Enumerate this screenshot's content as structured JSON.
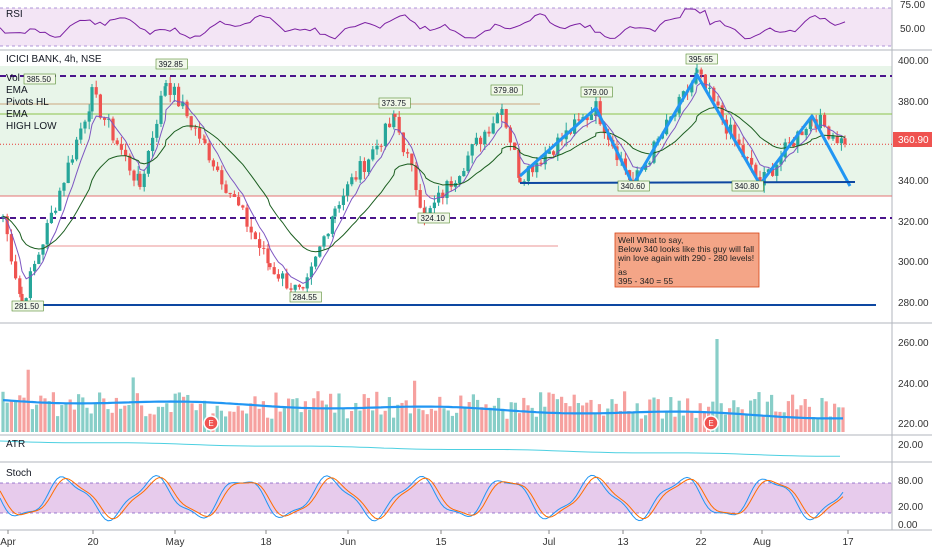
{
  "panels": {
    "rsi": {
      "title": "RSI",
      "ticks": [
        "75.00",
        "50.00"
      ]
    },
    "main": {
      "title": "ICICI BANK, 4h, NSE",
      "legend": [
        "Vol",
        "EMA",
        "Pivots HL",
        "EMA",
        "HIGH LOW"
      ],
      "ticks": [
        "400.00",
        "380.00",
        "360.00",
        "340.00",
        "320.00",
        "300.00",
        "280.00"
      ],
      "last_price": "360.90"
    },
    "volume": {
      "ticks": [
        "260.00",
        "240.00",
        "220.00"
      ],
      "event_marker": "E"
    },
    "atr": {
      "title": "ATR",
      "ticks": [
        "20.00"
      ]
    },
    "stoch": {
      "title": "Stoch",
      "ticks": [
        "80.00",
        "20.00",
        "0.00"
      ]
    }
  },
  "x_axis": {
    "labels": [
      "Apr",
      "20",
      "May",
      "18",
      "Jun",
      "15",
      "Jul",
      "13",
      "22",
      "Aug",
      "17"
    ]
  },
  "pivot_labels": [
    "385.50",
    "392.85",
    "281.50",
    "373.75",
    "379.80",
    "324.10",
    "284.55",
    "379.00",
    "395.65",
    "340.60",
    "340.80"
  ],
  "annotation": {
    "lines": [
      "Well What to say,",
      "Below 340 looks like this guy will fall",
      "win love again with 290 - 280 levels!",
      "!",
      "as",
      "395 - 340 = 55"
    ]
  },
  "chart_data": {
    "type": "candlestick",
    "title": "ICICI BANK, 4h, NSE",
    "timeframe": "4h",
    "last_price": 360.9,
    "ylim": [
      270,
      405
    ],
    "x_ticks": [
      "Apr",
      "20",
      "May",
      "18",
      "Jun",
      "15",
      "Jul",
      "13",
      "22",
      "Aug",
      "17"
    ],
    "price_path": [
      {
        "x": "Apr",
        "price": 325
      },
      {
        "x": "Apr",
        "price": 281.5
      },
      {
        "x": "20",
        "price": 385.5
      },
      {
        "x": "20",
        "price": 340
      },
      {
        "x": "May",
        "price": 392.85
      },
      {
        "x": "May",
        "price": 360
      },
      {
        "x": "18",
        "price": 300
      },
      {
        "x": "18",
        "price": 284.55
      },
      {
        "x": "Jun",
        "price": 330
      },
      {
        "x": "Jun",
        "price": 373.75
      },
      {
        "x": "15",
        "price": 324.1
      },
      {
        "x": "15",
        "price": 379.8
      },
      {
        "x": "Jul",
        "price": 345
      },
      {
        "x": "Jul",
        "price": 379.0
      },
      {
        "x": "13",
        "price": 340.6
      },
      {
        "x": "22",
        "price": 395.65
      },
      {
        "x": "Aug",
        "price": 340.8
      },
      {
        "x": "Aug",
        "price": 375
      },
      {
        "x": "17",
        "price": 360.9
      }
    ],
    "horizontal_levels": [
      {
        "price": 395,
        "style": "dashed",
        "color": "#4a148c"
      },
      {
        "price": 376,
        "style": "solid",
        "color": "#8bc34a"
      },
      {
        "price": 360.9,
        "style": "dotted",
        "color": "#e53935"
      },
      {
        "price": 335,
        "style": "solid",
        "color": "#e57373"
      },
      {
        "price": 324,
        "style": "dashed",
        "color": "#4a148c"
      },
      {
        "price": 280.5,
        "style": "solid",
        "color": "#0d47a1"
      }
    ],
    "zones": [
      {
        "from": 335,
        "to": 400,
        "color": "#e8f5e9"
      },
      {
        "from": 270,
        "to": 335,
        "color": "#fde0dc"
      }
    ],
    "pattern_w": [
      {
        "x": "Jul",
        "price": 345
      },
      {
        "x": "Jul",
        "price": 379
      },
      {
        "x": "13",
        "price": 340.6
      },
      {
        "x": "22",
        "price": 395.6
      },
      {
        "x": "Aug",
        "price": 340.8
      },
      {
        "x": "Aug",
        "price": 375
      },
      {
        "x": "17",
        "price": 340
      }
    ],
    "neckline": 339.5,
    "rsi": {
      "levels": [
        75,
        50
      ]
    },
    "volume": {
      "ylim": [
        215,
        265
      ],
      "peak": 262
    },
    "stoch": {
      "levels": [
        80,
        20
      ],
      "ylim": [
        -5,
        100
      ]
    },
    "colors": {
      "up": "#26a69a",
      "down": "#ef5350",
      "pattern": "#2196f3",
      "rsi": "#7b1fa2"
    }
  }
}
